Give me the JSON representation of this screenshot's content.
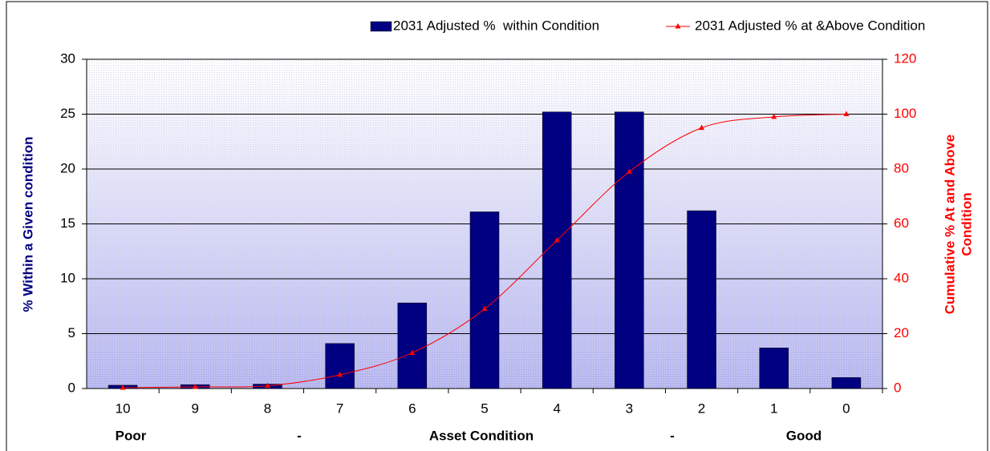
{
  "chart_data": {
    "type": "bar_line",
    "categories": [
      "10",
      "9",
      "8",
      "7",
      "6",
      "5",
      "4",
      "3",
      "2",
      "1",
      "0"
    ],
    "series": [
      {
        "name": "2031 Adjusted %  within Condition",
        "type": "bar",
        "color": "#000080",
        "values": [
          0.3,
          0.35,
          0.4,
          4.1,
          7.8,
          16.1,
          25.2,
          25.2,
          16.2,
          3.7,
          1.0
        ]
      },
      {
        "name": "2031 Adjusted % at &Above Condition",
        "type": "line",
        "axis": "y2",
        "color": "#ff0000",
        "values": [
          0.3,
          0.6,
          1,
          5,
          13,
          29,
          54,
          79,
          95,
          99,
          100
        ]
      }
    ],
    "ylabel": "% Within a Given condition",
    "y2label": [
      "Cumulative % At and Above",
      "Condition"
    ],
    "x_axis_labels": [
      "Poor",
      "-",
      "Asset Condition",
      "-",
      "Good"
    ],
    "ylim": [
      0,
      30
    ],
    "yticks": [
      0,
      5,
      10,
      15,
      20,
      25,
      30
    ],
    "y2lim": [
      0,
      120
    ],
    "y2ticks": [
      0,
      20,
      40,
      60,
      80,
      100,
      120
    ],
    "grid": true,
    "legend": "top-right"
  }
}
